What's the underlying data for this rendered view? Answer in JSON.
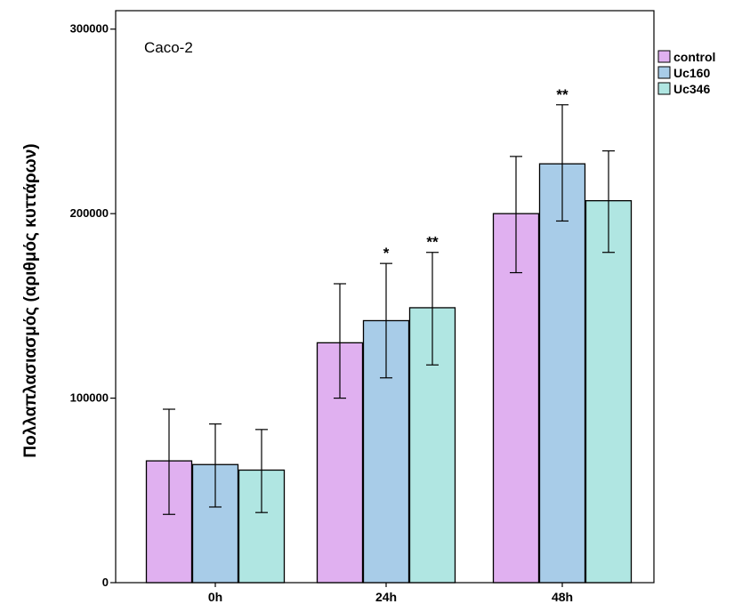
{
  "chart_data": {
    "type": "bar",
    "title": "Caco-2",
    "xlabel": "",
    "ylabel": "Πολλαπλασιασμός (αριθμός κυττάρων)",
    "categories": [
      "0h",
      "24h",
      "48h"
    ],
    "ylim": [
      0,
      310000
    ],
    "yticks": [
      0,
      100000,
      200000,
      300000
    ],
    "ytick_labels": [
      "0",
      "100000",
      "200000",
      "300000"
    ],
    "grid": false,
    "legend_position": "top-right",
    "series": [
      {
        "name": "control",
        "color": "#e0b0f0",
        "values": [
          66000,
          130000,
          200000
        ],
        "error_low": [
          37000,
          100000,
          168000
        ],
        "error_high": [
          94000,
          162000,
          231000
        ],
        "annotations": [
          "",
          "",
          ""
        ]
      },
      {
        "name": "Uc160",
        "color": "#a8cce8",
        "values": [
          64000,
          142000,
          227000
        ],
        "error_low": [
          41000,
          111000,
          196000
        ],
        "error_high": [
          86000,
          173000,
          259000
        ],
        "annotations": [
          "",
          "*",
          "**"
        ]
      },
      {
        "name": "Uc346",
        "color": "#b0e6e2",
        "values": [
          61000,
          149000,
          207000
        ],
        "error_low": [
          38000,
          118000,
          179000
        ],
        "error_high": [
          83000,
          179000,
          234000
        ],
        "annotations": [
          "",
          "**",
          ""
        ]
      }
    ]
  }
}
